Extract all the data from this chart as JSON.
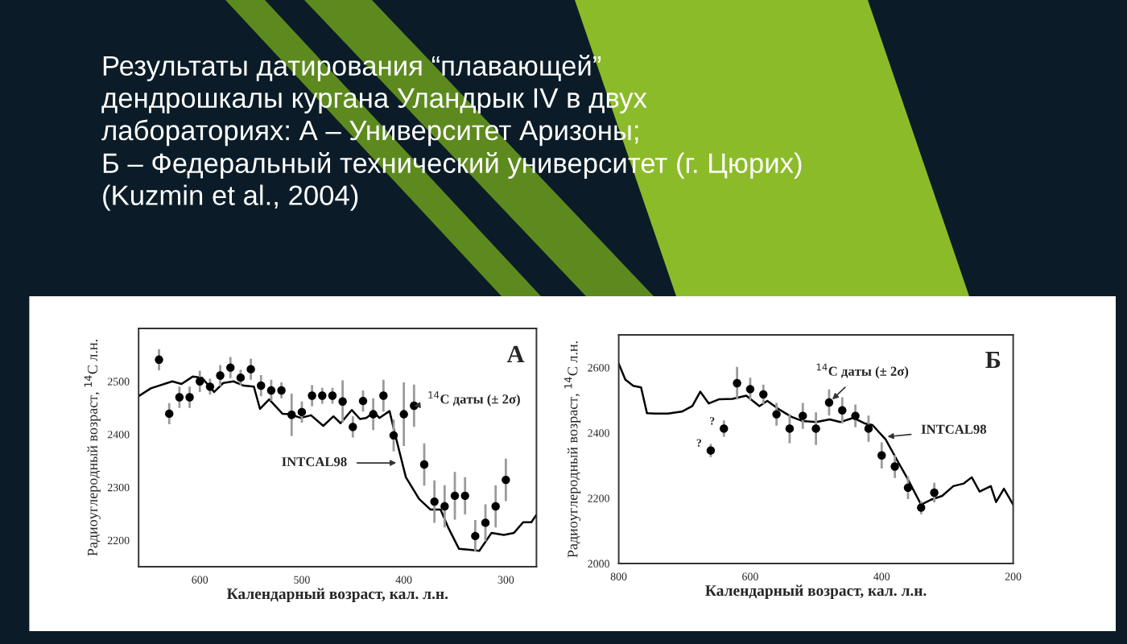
{
  "chart_data": [
    {
      "type": "scatter",
      "title": "Результаты датирования “плавающей”\nдендрошкалы кургана Уландрык IV в двух\nлабораториях: А – Университет Аризоны;\nБ – Федеральный технический университет (г. Цюрих)\n(Kuzmin et al., 2004)",
      "xlabel": "Календарный возраст, кал. л.н.",
      "ylabel": "Радиоуглеродный возраст, $^{14}$C л.н.",
      "xlim": [
        660,
        270
      ],
      "xticks": [
        600,
        500,
        400,
        300
      ],
      "ylim": [
        2150,
        2600
      ],
      "yticks": [
        2200,
        2300,
        2400,
        2500
      ],
      "grid": false,
      "legend": false,
      "series": [
        {
          "type": "line",
          "color": "#000000",
          "line_style": "solid",
          "marker": "none",
          "x": [
            660,
            648,
            627,
            618,
            607,
            598,
            586,
            577,
            567,
            557,
            547,
            541,
            532,
            519,
            512,
            501,
            491,
            479,
            469,
            462,
            451,
            443,
            437,
            429,
            424,
            414,
            409,
            398,
            385,
            374,
            364,
            356,
            346,
            335,
            326,
            314,
            302,
            292,
            283,
            275,
            270
          ],
          "values": [
            2472,
            2487,
            2500,
            2495,
            2509,
            2507,
            2480,
            2497,
            2500,
            2492,
            2490,
            2448,
            2466,
            2439,
            2438,
            2431,
            2436,
            2416,
            2434,
            2421,
            2446,
            2429,
            2431,
            2442,
            2431,
            2444,
            2403,
            2319,
            2278,
            2258,
            2258,
            2222,
            2184,
            2182,
            2180,
            2214,
            2210,
            2214,
            2234,
            2234,
            2248
          ]
        },
        {
          "color": "#000000",
          "marker": "circle",
          "x": [
            640,
            630,
            620,
            610,
            600,
            590,
            580,
            570,
            560,
            550,
            540,
            530,
            520,
            510,
            500,
            490,
            480,
            470,
            460,
            450,
            440,
            430,
            420,
            410,
            400,
            390,
            380,
            370,
            360,
            350,
            340,
            330,
            320,
            310,
            300
          ],
          "values": [
            2541,
            2439,
            2470,
            2470,
            2500,
            2490,
            2511,
            2526,
            2507,
            2523,
            2492,
            2483,
            2483,
            2437,
            2442,
            2473,
            2473,
            2473,
            2462,
            2414,
            2463,
            2438,
            2473,
            2398,
            2438,
            2454,
            2343,
            2273,
            2264,
            2284,
            2284,
            2208,
            2233,
            2264,
            2314
          ],
          "errors": [
            20,
            20,
            20,
            20,
            20,
            15,
            20,
            20,
            15,
            20,
            20,
            20,
            15,
            40,
            20,
            20,
            15,
            15,
            40,
            20,
            20,
            30,
            30,
            30,
            60,
            40,
            40,
            40,
            40,
            45,
            35,
            30,
            35,
            40,
            40
          ]
        }
      ],
      "annotations": [
        "А",
        {
          "text": "$^{14}$C даты (± 2σ)",
          "x": 390,
          "y": 2454
        },
        {
          "text": "INTCAL98",
          "x": 403,
          "y": 2346
        }
      ]
    },
    {
      "type": "scatter",
      "xlabel": "Календарный возраст, кал. л.н.",
      "ylabel": "Радиоуглеродный возраст, $^{14}$C л.н.",
      "xlim": [
        800,
        200
      ],
      "xticks": [
        800,
        600,
        400,
        200
      ],
      "ylim": [
        2000,
        2700
      ],
      "yticks": [
        2000,
        2200,
        2400,
        2600
      ],
      "grid": false,
      "legend": false,
      "series": [
        {
          "type": "line",
          "color": "#000000",
          "line_style": "solid",
          "marker": "none",
          "x": [
            800,
            790,
            778,
            766,
            757,
            745,
            725,
            704,
            688,
            676,
            663,
            647,
            627,
            606,
            586,
            574,
            557,
            537,
            520,
            500,
            479,
            463,
            443,
            426,
            414,
            394,
            377,
            361,
            340,
            324,
            308,
            291,
            275,
            263,
            251,
            234,
            226,
            214,
            200
          ],
          "values": [
            2612,
            2563,
            2544,
            2539,
            2460,
            2459,
            2459,
            2465,
            2482,
            2526,
            2490,
            2503,
            2504,
            2514,
            2482,
            2498,
            2473,
            2449,
            2436,
            2433,
            2441,
            2433,
            2446,
            2429,
            2424,
            2380,
            2318,
            2261,
            2180,
            2196,
            2207,
            2237,
            2245,
            2264,
            2220,
            2237,
            2188,
            2229,
            2180
          ]
        },
        {
          "color": "#000000",
          "marker": "circle",
          "x": [
            660,
            640,
            620,
            600,
            580,
            560,
            540,
            520,
            500,
            480,
            460,
            440,
            420,
            400,
            380,
            360,
            340,
            320
          ],
          "values": [
            2346,
            2413,
            2552,
            2534,
            2518,
            2457,
            2413,
            2452,
            2413,
            2493,
            2469,
            2452,
            2413,
            2331,
            2297,
            2232,
            2171,
            2217
          ],
          "errors": [
            20,
            25,
            50,
            35,
            30,
            35,
            45,
            40,
            50,
            40,
            40,
            35,
            40,
            40,
            35,
            35,
            20,
            30
          ]
        }
      ],
      "annotations": [
        "Б",
        {
          "text": "$^{14}$C даты (± 2σ)",
          "x": 480,
          "y": 2493
        },
        {
          "text": "INTCAL98",
          "x": 398,
          "y": 2387
        },
        {
          "text": "?",
          "x": 660,
          "y": 2346
        },
        {
          "text": "?",
          "x": 640,
          "y": 2413
        }
      ]
    }
  ]
}
